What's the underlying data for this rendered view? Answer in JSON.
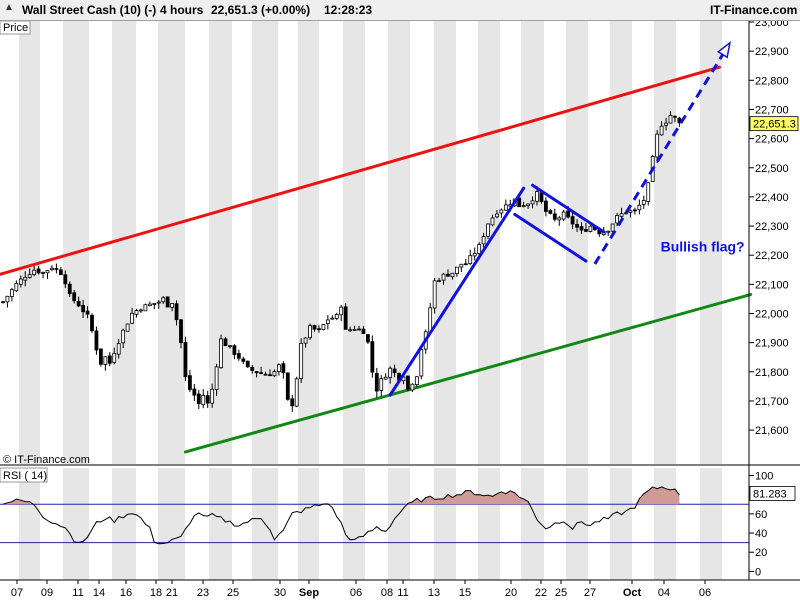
{
  "header": {
    "instrument": "Wall Street Cash (10) (-)",
    "timeframe": "4 hours",
    "last_quote": "22,651.3 (+0.00%)",
    "time": "12:28:23",
    "brand": "IT-Finance.com"
  },
  "price_panel": {
    "label": "Price",
    "watermark": "© IT-Finance.com",
    "annotation": "Bullish flag?",
    "last_value_label": "22,651.3"
  },
  "rsi_panel": {
    "label": "RSI ( 14)",
    "last_value_label": "81.283"
  },
  "colors": {
    "upper_channel": "#ee1111",
    "lower_channel": "#118811",
    "pattern": "#1111dd",
    "rsi_fill": "#d09a96",
    "grid_band": "#e6e6e6",
    "candle_up": "#ffffff",
    "candle_down": "#000000"
  },
  "chart_data": [
    {
      "type": "candlestick",
      "panel": "price",
      "title": "Wall Street Cash (10) (-) 4 hours",
      "ylabel": "Price",
      "ylim": [
        21520,
        23000
      ],
      "y_ticks": [
        21600,
        21700,
        21800,
        21900,
        22000,
        22100,
        22200,
        22300,
        22400,
        22500,
        22600,
        22700,
        22800,
        22900,
        23000
      ],
      "y_tick_labels": [
        "21,600",
        "21,700",
        "21,800",
        "21,900",
        "22,000",
        "22,100",
        "22,200",
        "22,300",
        "22,400",
        "22,500",
        "22,600",
        "22,700",
        "22,800",
        "22,900",
        "23,000"
      ],
      "x_tick_labels": [
        "07",
        "09",
        "11",
        "14",
        "16",
        "18",
        "21",
        "23",
        "25",
        "30",
        "Sep",
        "06",
        "08",
        "11",
        "13",
        "15",
        "20",
        "22",
        "25",
        "27",
        "Oct",
        "04",
        "06"
      ],
      "grid": "alternating vertical bands",
      "last_price": 22651.3,
      "close_path": [
        [
          0,
          22040
        ],
        [
          3,
          22100
        ],
        [
          5,
          22130
        ],
        [
          7,
          22150
        ],
        [
          9,
          22140
        ],
        [
          11,
          22160
        ],
        [
          13,
          22140
        ],
        [
          14,
          22110
        ],
        [
          15,
          22060
        ],
        [
          17,
          22030
        ],
        [
          19,
          21990
        ],
        [
          20,
          21940
        ],
        [
          21,
          21880
        ],
        [
          22,
          21830
        ],
        [
          23,
          21850
        ],
        [
          24,
          21830
        ],
        [
          25,
          21870
        ],
        [
          27,
          21940
        ],
        [
          29,
          22000
        ],
        [
          31,
          22020
        ],
        [
          33,
          22030
        ],
        [
          35,
          22040
        ],
        [
          36,
          22050
        ],
        [
          37,
          22030
        ],
        [
          38,
          22040
        ],
        [
          39,
          21980
        ],
        [
          40,
          21900
        ],
        [
          41,
          21780
        ],
        [
          42,
          21740
        ],
        [
          43,
          21720
        ],
        [
          44,
          21690
        ],
        [
          45,
          21720
        ],
        [
          46,
          21690
        ],
        [
          47,
          21740
        ],
        [
          49,
          21910
        ],
        [
          51,
          21880
        ],
        [
          53,
          21850
        ],
        [
          55,
          21810
        ],
        [
          57,
          21800
        ],
        [
          59,
          21790
        ],
        [
          61,
          21800
        ],
        [
          62,
          21820
        ],
        [
          63,
          21790
        ],
        [
          64,
          21700
        ],
        [
          65,
          21690
        ],
        [
          66,
          21780
        ],
        [
          67,
          21890
        ],
        [
          69,
          21950
        ],
        [
          71,
          21940
        ],
        [
          73,
          21980
        ],
        [
          75,
          21990
        ],
        [
          76,
          22030
        ],
        [
          77,
          21940
        ],
        [
          79,
          21950
        ],
        [
          81,
          21940
        ],
        [
          82,
          21900
        ],
        [
          83,
          21800
        ],
        [
          84,
          21740
        ],
        [
          85,
          21770
        ],
        [
          87,
          21810
        ],
        [
          89,
          21780
        ],
        [
          90,
          21790
        ],
        [
          91,
          21740
        ],
        [
          93,
          21790
        ],
        [
          94,
          21880
        ],
        [
          95,
          21930
        ],
        [
          96,
          22020
        ],
        [
          97,
          22110
        ],
        [
          99,
          22130
        ],
        [
          101,
          22140
        ],
        [
          103,
          22170
        ],
        [
          104,
          22170
        ],
        [
          105,
          22190
        ],
        [
          107,
          22230
        ],
        [
          109,
          22310
        ],
        [
          111,
          22350
        ],
        [
          113,
          22370
        ],
        [
          115,
          22390
        ],
        [
          116,
          22370
        ],
        [
          118,
          22380
        ],
        [
          120,
          22410
        ],
        [
          121,
          22380
        ],
        [
          122,
          22350
        ],
        [
          124,
          22320
        ],
        [
          126,
          22340
        ],
        [
          128,
          22310
        ],
        [
          130,
          22280
        ],
        [
          132,
          22300
        ],
        [
          134,
          22280
        ],
        [
          136,
          22290
        ],
        [
          138,
          22330
        ],
        [
          140,
          22350
        ],
        [
          142,
          22350
        ],
        [
          143,
          22370
        ],
        [
          144,
          22390
        ],
        [
          145,
          22440
        ],
        [
          146,
          22530
        ],
        [
          147,
          22610
        ],
        [
          148,
          22650
        ],
        [
          149,
          22660
        ],
        [
          150,
          22680
        ],
        [
          151,
          22670
        ],
        [
          152,
          22651
        ]
      ],
      "annotations": [
        {
          "type": "trendline",
          "name": "upper channel",
          "color": "red",
          "points": [
            [
              -1,
              22133
            ],
            [
              161,
              22845
            ]
          ]
        },
        {
          "type": "trendline",
          "name": "lower channel",
          "color": "green",
          "points": [
            [
              41,
              21525
            ],
            [
              168,
              22065
            ]
          ]
        },
        {
          "type": "trendline",
          "name": "flagpole",
          "color": "blue",
          "points": [
            [
              87,
              21720
            ],
            [
              117,
              22430
            ]
          ]
        },
        {
          "type": "trendline",
          "name": "flag upper",
          "color": "blue",
          "points": [
            [
              119,
              22440
            ],
            [
              135,
              22280
            ]
          ]
        },
        {
          "type": "trendline",
          "name": "flag lower",
          "color": "blue",
          "points": [
            [
              115,
              22340
            ],
            [
              131,
              22180
            ]
          ]
        },
        {
          "type": "dashed-arrow",
          "name": "target projection",
          "color": "blue",
          "points": [
            [
              133,
              22170
            ],
            [
              163,
              22920
            ]
          ]
        },
        {
          "type": "text",
          "text": "Bullish flag?",
          "at": [
            148,
            22230
          ]
        }
      ]
    },
    {
      "type": "line",
      "panel": "rsi",
      "title": "RSI ( 14)",
      "ylim": [
        0,
        100
      ],
      "y_ticks": [
        0,
        20,
        40,
        60,
        80,
        100
      ],
      "y_tick_labels": [
        "0",
        "20",
        "40",
        "60",
        "80",
        "100"
      ],
      "reference_lines": [
        30,
        70
      ],
      "fill_above": 70,
      "last_value": 81.283,
      "rsi_path": [
        [
          0,
          72
        ],
        [
          4,
          74
        ],
        [
          7,
          70
        ],
        [
          9,
          58
        ],
        [
          11,
          52
        ],
        [
          13,
          48
        ],
        [
          15,
          42
        ],
        [
          16,
          32
        ],
        [
          17,
          28
        ],
        [
          19,
          36
        ],
        [
          21,
          50
        ],
        [
          23,
          56
        ],
        [
          25,
          53
        ],
        [
          27,
          58
        ],
        [
          29,
          62
        ],
        [
          31,
          55
        ],
        [
          33,
          44
        ],
        [
          34,
          32
        ],
        [
          36,
          29
        ],
        [
          38,
          32
        ],
        [
          40,
          35
        ],
        [
          42,
          52
        ],
        [
          44,
          62
        ],
        [
          45,
          56
        ],
        [
          47,
          58
        ],
        [
          50,
          53
        ],
        [
          53,
          48
        ],
        [
          55,
          52
        ],
        [
          58,
          56
        ],
        [
          60,
          45
        ],
        [
          61,
          34
        ],
        [
          63,
          42
        ],
        [
          65,
          60
        ],
        [
          67,
          63
        ],
        [
          70,
          68
        ],
        [
          72,
          70
        ],
        [
          73,
          72
        ],
        [
          75,
          58
        ],
        [
          76,
          50
        ],
        [
          77,
          38
        ],
        [
          79,
          32
        ],
        [
          80,
          34
        ],
        [
          82,
          40
        ],
        [
          84,
          46
        ],
        [
          86,
          42
        ],
        [
          88,
          55
        ],
        [
          90,
          66
        ],
        [
          93,
          74
        ],
        [
          96,
          76
        ],
        [
          99,
          78
        ],
        [
          102,
          80
        ],
        [
          105,
          83
        ],
        [
          108,
          80
        ],
        [
          110,
          78
        ],
        [
          112,
          84
        ],
        [
          115,
          82
        ],
        [
          118,
          72
        ],
        [
          120,
          55
        ],
        [
          122,
          45
        ],
        [
          124,
          50
        ],
        [
          126,
          54
        ],
        [
          128,
          45
        ],
        [
          130,
          52
        ],
        [
          132,
          48
        ],
        [
          134,
          53
        ],
        [
          136,
          55
        ],
        [
          138,
          60
        ],
        [
          140,
          62
        ],
        [
          142,
          68
        ],
        [
          144,
          80
        ],
        [
          146,
          86
        ],
        [
          148,
          88
        ],
        [
          150,
          87
        ],
        [
          152,
          81
        ]
      ]
    }
  ]
}
